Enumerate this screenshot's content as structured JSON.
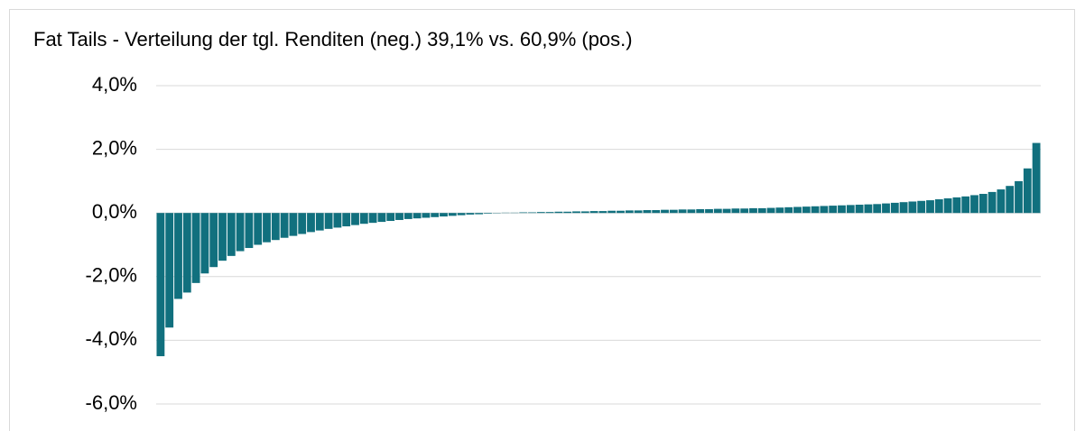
{
  "chart_data": {
    "type": "bar",
    "title": "Fat Tails - Verteilung der tgl. Renditen (neg.) 39,1% vs. 60,9% (pos.)",
    "values": [
      -4.5,
      -3.6,
      -2.7,
      -2.5,
      -2.2,
      -1.9,
      -1.7,
      -1.5,
      -1.35,
      -1.2,
      -1.1,
      -1.0,
      -0.92,
      -0.85,
      -0.78,
      -0.72,
      -0.66,
      -0.6,
      -0.55,
      -0.5,
      -0.46,
      -0.42,
      -0.38,
      -0.34,
      -0.31,
      -0.28,
      -0.25,
      -0.22,
      -0.19,
      -0.17,
      -0.15,
      -0.13,
      -0.11,
      -0.09,
      -0.07,
      -0.05,
      -0.04,
      -0.02,
      -0.01,
      0.01,
      0.01,
      0.02,
      0.02,
      0.03,
      0.03,
      0.04,
      0.04,
      0.05,
      0.05,
      0.06,
      0.06,
      0.07,
      0.07,
      0.08,
      0.08,
      0.09,
      0.09,
      0.1,
      0.1,
      0.11,
      0.11,
      0.12,
      0.12,
      0.13,
      0.13,
      0.14,
      0.14,
      0.15,
      0.15,
      0.16,
      0.17,
      0.18,
      0.19,
      0.2,
      0.21,
      0.22,
      0.23,
      0.24,
      0.25,
      0.26,
      0.27,
      0.28,
      0.3,
      0.32,
      0.34,
      0.36,
      0.38,
      0.4,
      0.43,
      0.46,
      0.49,
      0.52,
      0.56,
      0.6,
      0.66,
      0.74,
      0.85,
      1.0,
      1.4,
      2.2
    ],
    "color": "#11707e",
    "ylim": [
      -6,
      4
    ],
    "yticks": [
      {
        "value": -6,
        "label": "-6,0%"
      },
      {
        "value": -4,
        "label": "-4,0%"
      },
      {
        "value": -2,
        "label": "-2,0%"
      },
      {
        "value": 0,
        "label": "0,0%"
      },
      {
        "value": 2,
        "label": "2,0%"
      },
      {
        "value": 4,
        "label": "4,0%"
      }
    ],
    "grid": true
  }
}
